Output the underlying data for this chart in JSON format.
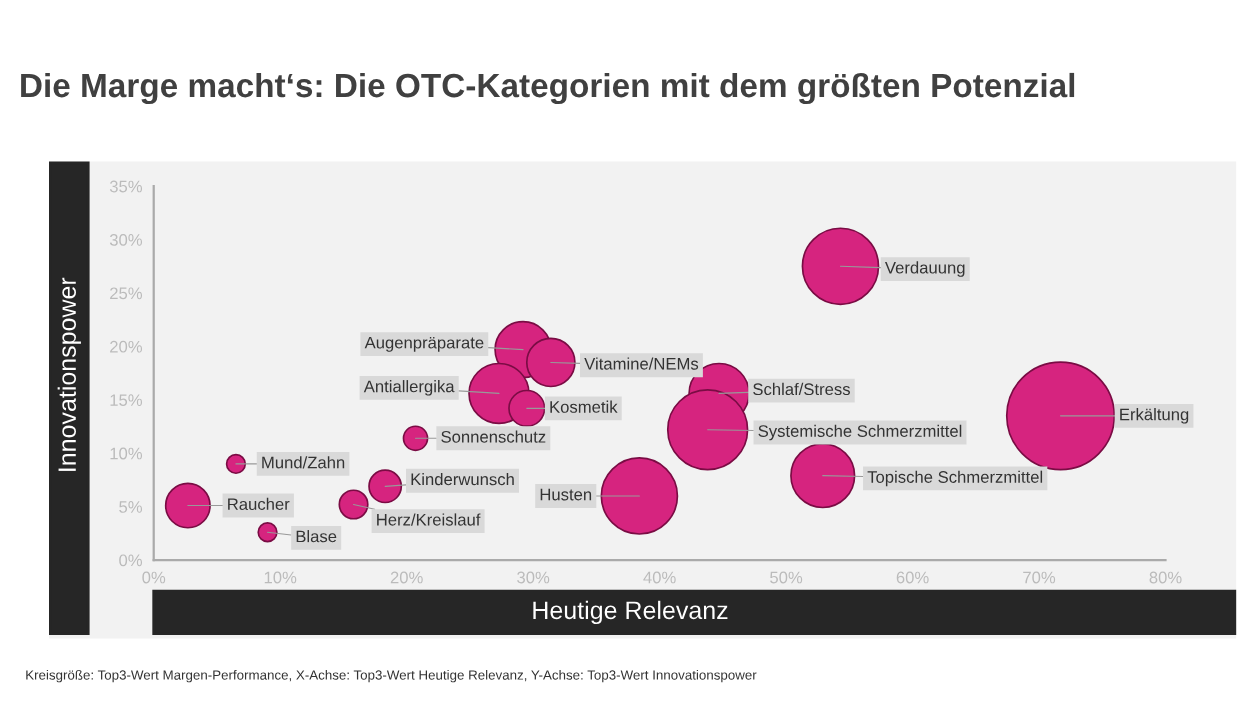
{
  "chart_data": {
    "type": "bubble",
    "title": "Die Marge macht‘s: Die OTC-Kategorien mit dem größten Potenzial",
    "xlabel": "Heutige Relevanz",
    "ylabel": "Innovationspower",
    "x": [
      2.7,
      9.0,
      6.5,
      15.8,
      18.3,
      20.7,
      29.2,
      31.4,
      27.3,
      29.5,
      38.4,
      44.7,
      43.8,
      52.9,
      54.3,
      71.7
    ],
    "values": [
      5.1,
      2.6,
      9.0,
      5.2,
      6.9,
      11.4,
      19.7,
      18.5,
      15.6,
      14.2,
      6.0,
      15.6,
      12.2,
      7.9,
      27.5,
      13.5
    ],
    "sizes": [
      0.17,
      0.03,
      0.03,
      0.07,
      0.09,
      0.05,
      0.27,
      0.2,
      0.31,
      0.11,
      0.5,
      0.31,
      0.55,
      0.35,
      0.5,
      1
    ],
    "color": "#d6247f",
    "annotations": [
      {
        "text": "Raucher",
        "x": 2.7,
        "y": 5.1
      },
      {
        "text": "Blase",
        "x": 9.0,
        "y": 2.6
      },
      {
        "text": "Mund/Zahn",
        "x": 6.5,
        "y": 9.0
      },
      {
        "text": "Herz/Kreislauf",
        "x": 15.8,
        "y": 5.2
      },
      {
        "text": "Kinderwunsch",
        "x": 18.3,
        "y": 6.9
      },
      {
        "text": "Sonnenschutz",
        "x": 20.7,
        "y": 11.4
      },
      {
        "text": "Augenpräparate",
        "x": 29.2,
        "y": 19.7
      },
      {
        "text": "Vitamine/NEMs",
        "x": 31.4,
        "y": 18.5
      },
      {
        "text": "Antiallergika",
        "x": 27.3,
        "y": 15.6
      },
      {
        "text": "Kosmetik",
        "x": 29.5,
        "y": 14.2
      },
      {
        "text": "Husten",
        "x": 38.4,
        "y": 6.0
      },
      {
        "text": "Schlaf/Stress",
        "x": 44.7,
        "y": 15.6
      },
      {
        "text": "Systemische Schmerzmittel",
        "x": 43.8,
        "y": 12.2
      },
      {
        "text": "Topische Schmerzmittel",
        "x": 52.9,
        "y": 7.9
      },
      {
        "text": "Verdauung",
        "x": 54.3,
        "y": 27.5
      },
      {
        "text": "Erkältung",
        "x": 71.7,
        "y": 13.5
      },
      "Kreisgröße: Top3-Wert Margen-Performance, X-Achse: Top3-Wert Heutige Relevanz, Y-Achse: Top3-Wert Innovationspower"
    ],
    "xlim": [
      0,
      80
    ],
    "ylim": [
      0,
      35
    ],
    "xticks": [
      {
        "value": 0,
        "label": "0%"
      },
      {
        "value": 10,
        "label": "10%"
      },
      {
        "value": 20,
        "label": "20%"
      },
      {
        "value": 30,
        "label": "30%"
      },
      {
        "value": 40,
        "label": "40%"
      },
      {
        "value": 50,
        "label": "50%"
      },
      {
        "value": 60,
        "label": "60%"
      },
      {
        "value": 70,
        "label": "70%"
      },
      {
        "value": 80,
        "label": "80%"
      }
    ],
    "yticks": [
      {
        "value": 0,
        "label": "0%"
      },
      {
        "value": 5,
        "label": "5%"
      },
      {
        "value": 10,
        "label": "10%"
      },
      {
        "value": 15,
        "label": "15%"
      },
      {
        "value": 20,
        "label": "20%"
      },
      {
        "value": 25,
        "label": "25%"
      },
      {
        "value": 30,
        "label": "30%"
      },
      {
        "value": 35,
        "label": "35%"
      }
    ],
    "grid": false,
    "legend": false
  }
}
